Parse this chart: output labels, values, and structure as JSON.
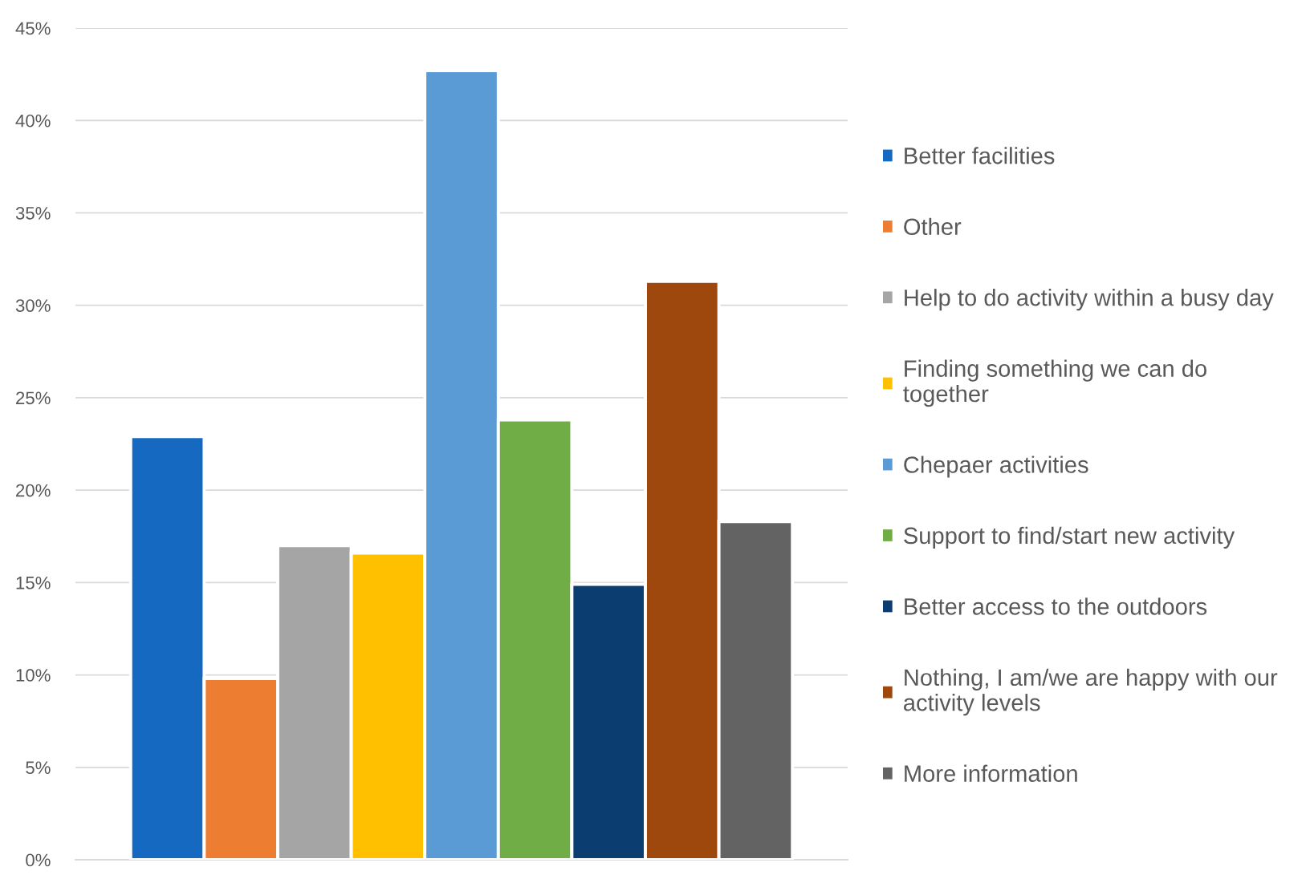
{
  "chart_data": {
    "type": "bar",
    "categories": [
      null
    ],
    "series": [
      {
        "name": "Better facilities",
        "color": "#1569c1",
        "values": [
          22.9
        ]
      },
      {
        "name": "Other",
        "color": "#ed7d31",
        "values": [
          9.8
        ]
      },
      {
        "name": "Help to do activity within a busy day",
        "color": "#a5a5a5",
        "values": [
          17.0
        ]
      },
      {
        "name": "Finding something we can do together",
        "color": "#ffc000",
        "values": [
          16.6
        ]
      },
      {
        "name": "Chepaer activities",
        "color": "#5b9bd5",
        "values": [
          42.7
        ]
      },
      {
        "name": "Support to find/start new activity",
        "color": "#70ad47",
        "values": [
          23.8
        ]
      },
      {
        "name": "Better access to the outdoors",
        "color": "#0c3d70",
        "values": [
          14.9
        ]
      },
      {
        "name": "Nothing, I am/we are happy with our activity levels",
        "color": "#9e480e",
        "values": [
          31.3
        ]
      },
      {
        "name": "More information",
        "color": "#636363",
        "values": [
          18.3
        ]
      }
    ],
    "ylim": [
      0,
      45
    ],
    "yticks": [
      {
        "value": 0,
        "label": "0%"
      },
      {
        "value": 5,
        "label": "5%"
      },
      {
        "value": 10,
        "label": "10%"
      },
      {
        "value": 15,
        "label": "15%"
      },
      {
        "value": 20,
        "label": "20%"
      },
      {
        "value": 25,
        "label": "25%"
      },
      {
        "value": 30,
        "label": "30%"
      },
      {
        "value": 35,
        "label": "35%"
      },
      {
        "value": 40,
        "label": "40%"
      },
      {
        "value": 45,
        "label": "45%"
      }
    ],
    "grid": "y",
    "legend": "right"
  }
}
